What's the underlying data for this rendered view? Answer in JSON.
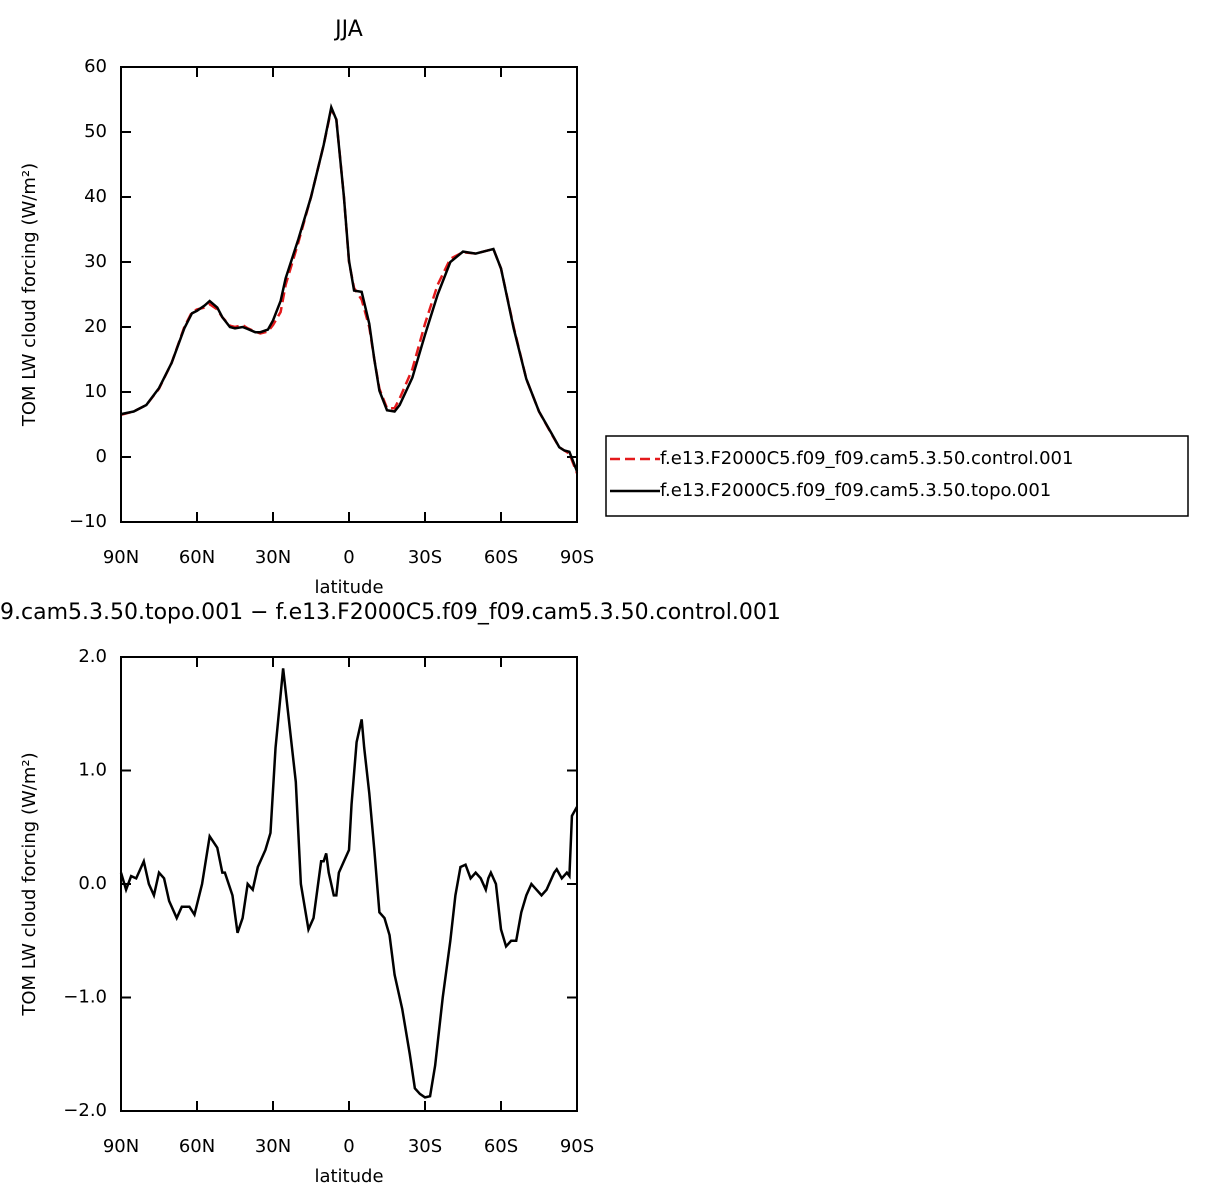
{
  "chart_data": [
    {
      "type": "line",
      "title": "JJA",
      "xlabel": "latitude",
      "ylabel": "TOM LW cloud forcing (W/m²)",
      "xlim": [
        90,
        -90
      ],
      "xticks": [
        {
          "value": 90,
          "label": "90N"
        },
        {
          "value": 60,
          "label": "60N"
        },
        {
          "value": 30,
          "label": "30N"
        },
        0,
        {
          "value": -30,
          "label": "30S"
        },
        {
          "value": -60,
          "label": "60S"
        },
        {
          "value": -90,
          "label": "90S"
        }
      ],
      "ylim": [
        -10,
        60
      ],
      "yticks": [
        {
          "value": -10,
          "label": "−10"
        },
        0,
        10,
        20,
        30,
        40,
        50,
        60
      ],
      "legend": "right",
      "x": [
        90,
        85,
        80,
        75,
        70,
        65,
        62,
        60,
        57,
        55,
        52,
        50,
        47,
        45,
        42,
        40,
        37,
        35,
        32,
        30,
        27,
        25,
        20,
        15,
        10,
        7,
        5,
        2,
        0,
        -2,
        -5,
        -8,
        -10,
        -12,
        -15,
        -18,
        -20,
        -25,
        -30,
        -35,
        -40,
        -45,
        -50,
        -55,
        -57,
        -60,
        -65,
        -70,
        -75,
        -80,
        -83,
        -85,
        -87,
        -90
      ],
      "series": [
        {
          "name": "f.e13.F2000C5.f09_f09.cam5.3.50.control.001",
          "color": "#e41a1c",
          "dash": true,
          "values": [
            6.5,
            7,
            8,
            10.5,
            14.5,
            20,
            22.3,
            22.7,
            23,
            23.5,
            22.7,
            21.5,
            20.2,
            20,
            20.3,
            19.8,
            19.3,
            19,
            19.3,
            20.3,
            22.3,
            26.5,
            33,
            40,
            48,
            53.5,
            52,
            40,
            30,
            26,
            24.2,
            20,
            15,
            10.5,
            7.5,
            7.5,
            9,
            13.5,
            20.5,
            26.5,
            30.5,
            31.5,
            31.3,
            31.8,
            32,
            29,
            20,
            12,
            7,
            3.5,
            1.5,
            1,
            0.5,
            -2.5
          ]
        },
        {
          "name": "f.e13.F2000C5.f09_f09.cam5.3.50.topo.001",
          "color": "#000000",
          "dash": false,
          "values": [
            6.6,
            7,
            8,
            10.6,
            14.5,
            19.8,
            22.1,
            22.5,
            23.3,
            24,
            23,
            21.5,
            20,
            19.8,
            20,
            19.7,
            19.2,
            19.2,
            19.6,
            21,
            24,
            27.5,
            33.5,
            40,
            48,
            53.8,
            51.9,
            40,
            30.2,
            25.6,
            25.4,
            20.5,
            15,
            10.2,
            7.2,
            7,
            8,
            12.2,
            18.8,
            25,
            30,
            31.6,
            31.3,
            31.8,
            32,
            29,
            19.8,
            12,
            7,
            3.6,
            1.5,
            1,
            0.8,
            -2.2
          ]
        }
      ]
    },
    {
      "type": "line",
      "title": "9.cam5.3.50.topo.001 − f.e13.F2000C5.f09_f09.cam5.3.50.control.001",
      "xlabel": "latitude",
      "ylabel": "TOM LW cloud forcing (W/m²)",
      "xlim": [
        90,
        -90
      ],
      "xticks": [
        {
          "value": 90,
          "label": "90N"
        },
        {
          "value": 60,
          "label": "60N"
        },
        {
          "value": 30,
          "label": "30N"
        },
        0,
        {
          "value": -30,
          "label": "30S"
        },
        {
          "value": -60,
          "label": "60S"
        },
        {
          "value": -90,
          "label": "90S"
        }
      ],
      "ylim": [
        -2,
        2
      ],
      "yticks": [
        {
          "value": -2,
          "label": "−2.0"
        },
        {
          "value": -1,
          "label": "−1.0"
        },
        {
          "value": 0,
          "label": "0.0"
        },
        {
          "value": 1,
          "label": "1.0"
        },
        {
          "value": 2,
          "label": "2.0"
        }
      ],
      "color": "#000000",
      "x": [
        90,
        88,
        86,
        84,
        81,
        79,
        77,
        75,
        73,
        71,
        68,
        66,
        63,
        61,
        58,
        55,
        52,
        50,
        49,
        46,
        44,
        42,
        40,
        38,
        36,
        33,
        31,
        29,
        26,
        24,
        21,
        19,
        16,
        14,
        11,
        10,
        9,
        8,
        6,
        5,
        4,
        2,
        0,
        -1,
        -3,
        -5,
        -6,
        -8,
        -10,
        -12,
        -14,
        -16,
        -18,
        -21,
        -24,
        -26,
        -28,
        -30,
        -32,
        -34,
        -37,
        -40,
        -42,
        -44,
        -46,
        -48,
        -50,
        -52,
        -54,
        -55,
        -56,
        -58,
        -60,
        -62,
        -64,
        -66,
        -68,
        -70,
        -72,
        -74,
        -76,
        -78,
        -81,
        -82,
        -84,
        -86,
        -87,
        -88,
        -90
      ],
      "values": [
        0.1,
        -0.05,
        0.07,
        0.05,
        0.2,
        0,
        -0.1,
        0.1,
        0.05,
        -0.15,
        -0.3,
        -0.2,
        -0.2,
        -0.27,
        0,
        0.42,
        0.32,
        0.1,
        0.1,
        -0.1,
        -0.43,
        -0.3,
        0,
        -0.05,
        0.15,
        0.3,
        0.45,
        1.2,
        1.9,
        1.5,
        0.9,
        0,
        -0.4,
        -0.3,
        0.2,
        0.2,
        0.27,
        0.1,
        -0.1,
        -0.1,
        0.1,
        0.2,
        0.3,
        0.7,
        1.25,
        1.45,
        1.2,
        0.8,
        0.3,
        -0.25,
        -0.3,
        -0.45,
        -0.8,
        -1.1,
        -1.5,
        -1.8,
        -1.85,
        -1.88,
        -1.87,
        -1.6,
        -1,
        -0.5,
        -0.1,
        0.15,
        0.17,
        0.05,
        0.1,
        0.05,
        -0.05,
        0.05,
        0.1,
        0,
        -0.4,
        -0.55,
        -0.5,
        -0.5,
        -0.25,
        -0.1,
        0,
        -0.05,
        -0.1,
        -0.05,
        0.1,
        0.13,
        0.05,
        0.1,
        0.07,
        0.6,
        0.68
      ]
    }
  ]
}
